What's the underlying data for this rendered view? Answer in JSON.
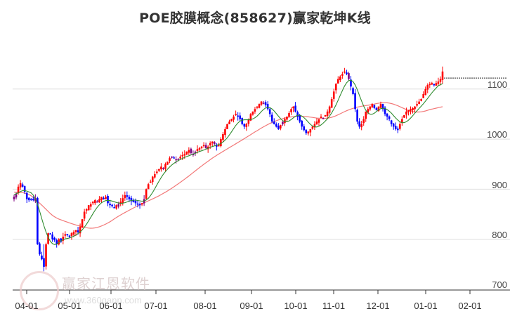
{
  "title": "POE胶膜概念(858627)赢家乾坤K线",
  "watermark": {
    "name": "赢家江恩软件",
    "url": "www.360gann.com"
  },
  "colors": {
    "up": "#ff0000",
    "down": "#0000ff",
    "neutral": "#800080",
    "ma_short": "#2e8b2e",
    "ma_long": "#f06060",
    "grid": "#dddddd",
    "axis": "#333333"
  },
  "chart_data": {
    "type": "candlestick",
    "title": "POE胶膜概念(858627)赢家乾坤K线",
    "xlabel": "",
    "ylabel": "",
    "ylim": [
      700,
      1150
    ],
    "yticks": [
      700,
      800,
      900,
      1000,
      1100
    ],
    "xticks": [
      "04-01",
      "05-01",
      "06-01",
      "07-01",
      "08-01",
      "09-01",
      "10-01",
      "11-01",
      "12-01",
      "01-01",
      "02-01"
    ],
    "grid": true,
    "legend": "none",
    "series": [
      {
        "name": "close",
        "values": [
          885,
          890,
          905,
          912,
          905,
          895,
          880,
          878,
          880,
          878,
          882,
          790,
          770,
          760,
          745,
          790,
          812,
          810,
          800,
          798,
          790,
          800,
          795,
          805,
          810,
          808,
          805,
          812,
          815,
          818,
          814,
          825,
          840,
          855,
          860,
          868,
          870,
          875,
          878,
          875,
          880,
          885,
          880,
          885,
          872,
          868,
          866,
          864,
          868,
          870,
          875,
          882,
          888,
          885,
          880,
          876,
          874,
          872,
          870,
          868,
          872,
          880,
          900,
          910,
          915,
          925,
          930,
          935,
          940,
          945,
          942,
          950,
          955,
          962,
          965,
          962,
          958,
          960,
          965,
          968,
          970,
          975,
          978,
          972,
          970,
          975,
          980,
          982,
          985,
          988,
          982,
          985,
          992,
          995,
          990,
          985,
          988,
          1000,
          1010,
          1020,
          1030,
          1035,
          1040,
          1045,
          1050,
          1045,
          1040,
          1030,
          1025,
          1030,
          1040,
          1050,
          1055,
          1060,
          1065,
          1070,
          1075,
          1072,
          1068,
          1060,
          1050,
          1035,
          1030,
          1025,
          1020,
          1028,
          1035,
          1040,
          1045,
          1052,
          1060,
          1065,
          1055,
          1045,
          1035,
          1025,
          1018,
          1012,
          1015,
          1020,
          1025,
          1030,
          1035,
          1040,
          1045,
          1042,
          1048,
          1055,
          1065,
          1080,
          1095,
          1110,
          1120,
          1125,
          1130,
          1135,
          1130,
          1120,
          1105,
          1090,
          1060,
          1035,
          1025,
          1030,
          1040,
          1055,
          1060,
          1065,
          1070,
          1062,
          1058,
          1065,
          1070,
          1060,
          1050,
          1045,
          1040,
          1030,
          1025,
          1020,
          1018,
          1030,
          1040,
          1048,
          1055,
          1058,
          1060,
          1062,
          1065,
          1070,
          1075,
          1080,
          1090,
          1100,
          1108,
          1110,
          1112,
          1108,
          1112,
          1115,
          1120,
          1135
        ]
      },
      {
        "name": "MA-short",
        "color": "#2e8b2e"
      },
      {
        "name": "MA-long",
        "color": "#f06060"
      }
    ],
    "reference_line": {
      "value": 1122,
      "style": "dashed"
    }
  }
}
